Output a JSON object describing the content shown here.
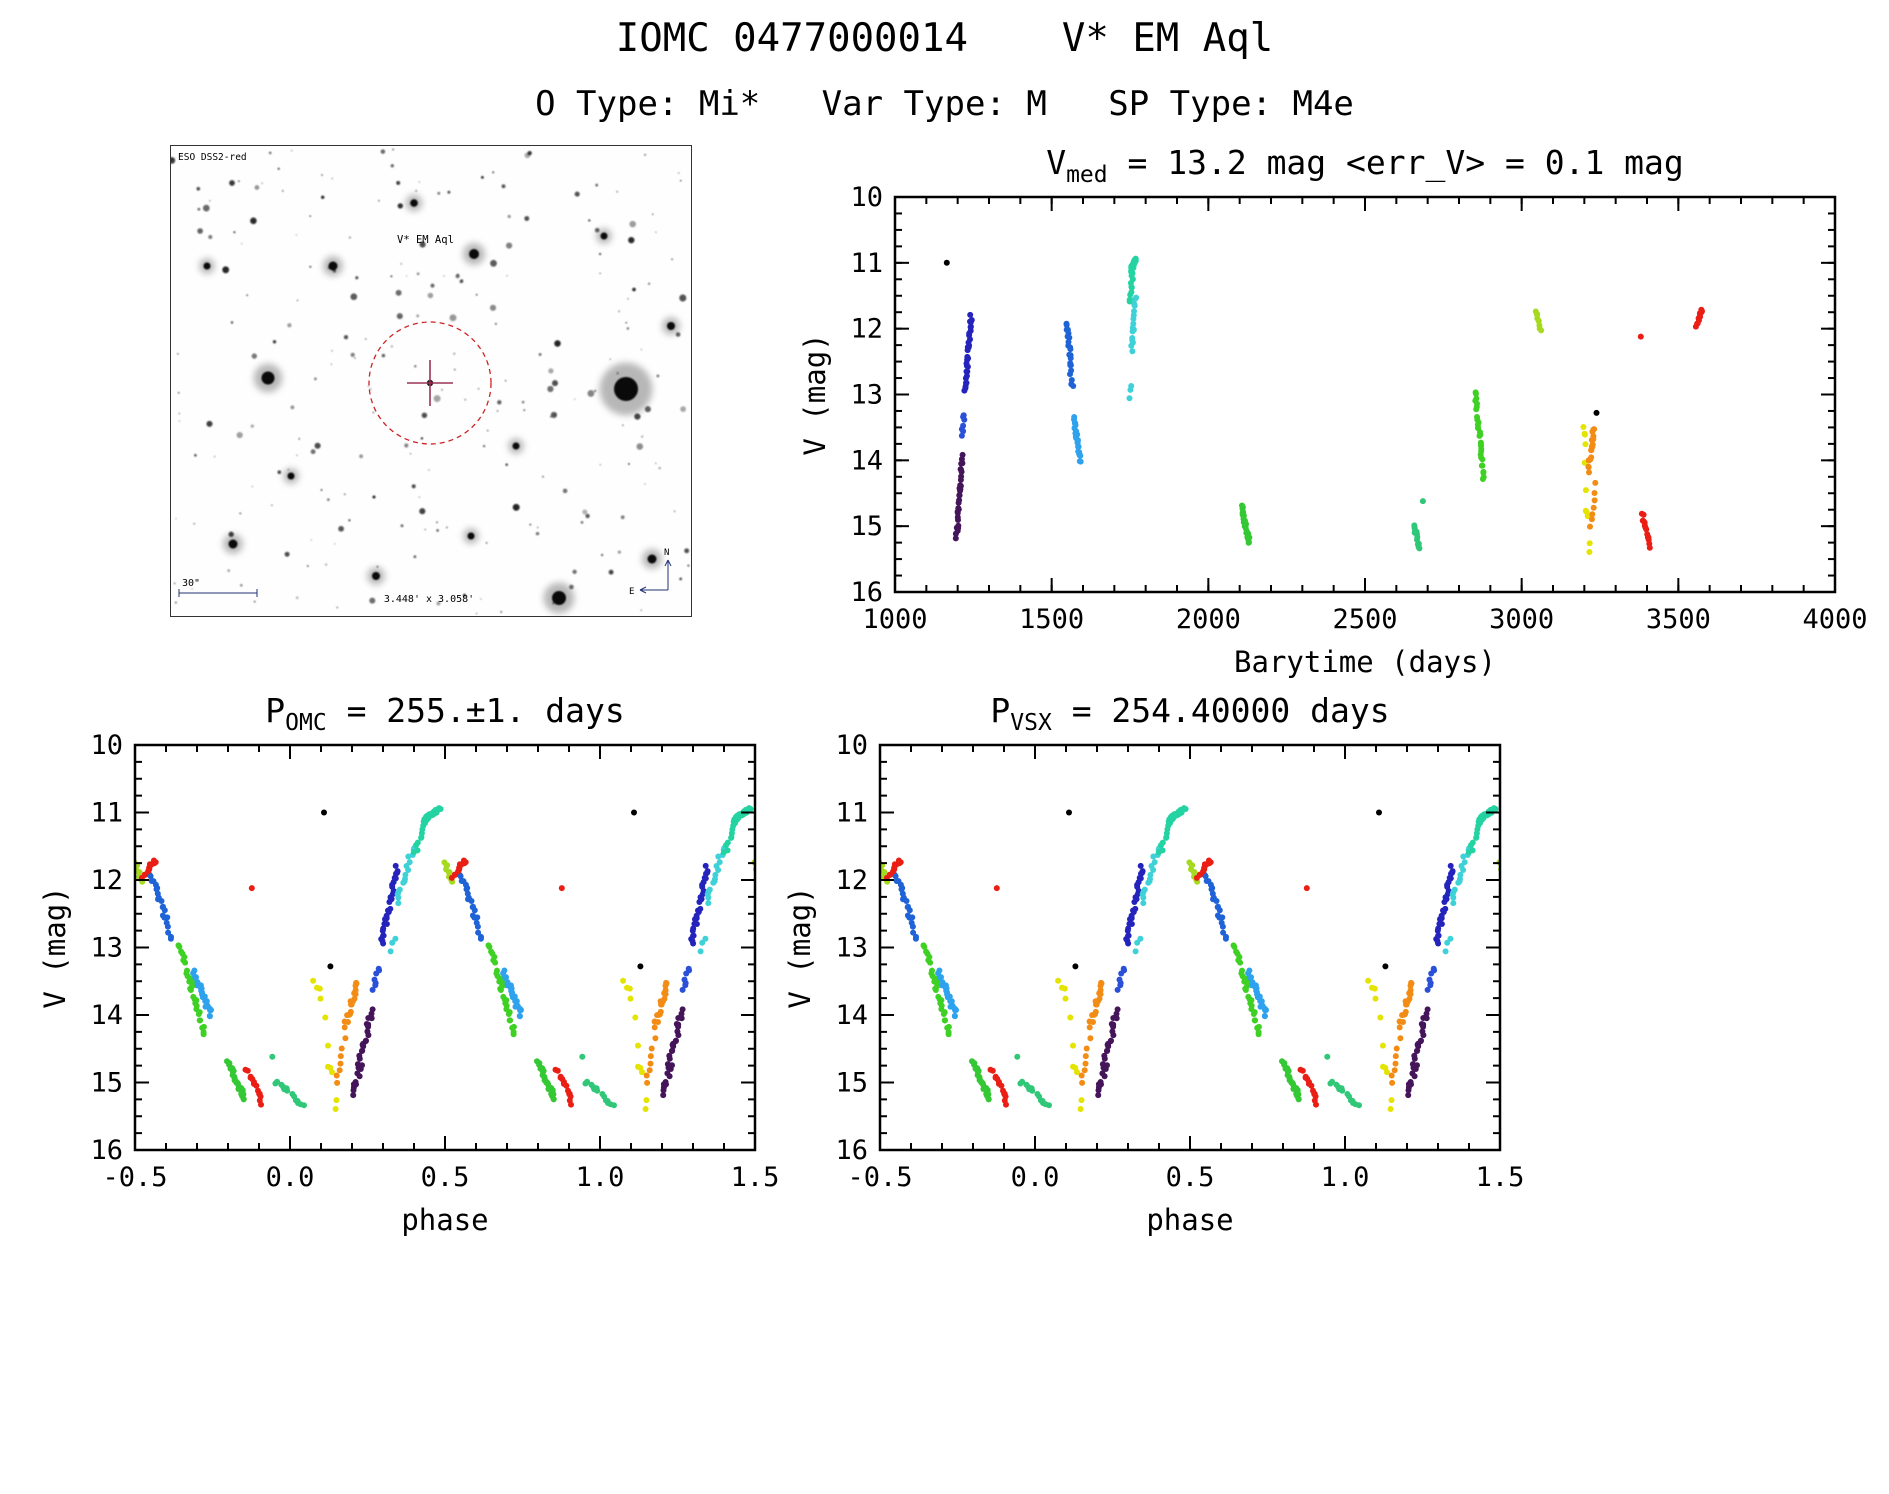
{
  "header": {
    "title": "IOMC 0477000014    V* EM Aql",
    "subtitle": "O Type: Mi*   Var Type: M   SP Type: M4e"
  },
  "finder": {
    "survey_label": "ESO DSS2-red",
    "target_label": "V* EM Aql",
    "scale_label": "30\"",
    "fov_label": "3.448' x 3.058'",
    "north_label": "N",
    "east_label": "E"
  },
  "chart_data": {
    "type": "scatter",
    "vmed_mag": 13.2,
    "err_v_mag": 0.1,
    "plots": [
      {
        "id": "barytime_lightcurve",
        "title_pre": "V",
        "title_sub": "med",
        "title_post": " = 13.2 mag <err_V> = 0.1 mag",
        "xlabel": "Barytime (days)",
        "ylabel": "V (mag)",
        "xlim": [
          1000,
          4000
        ],
        "ylim": [
          10,
          16
        ],
        "xticks": [
          1000,
          1500,
          2000,
          2500,
          3000,
          3500,
          4000
        ],
        "xtick_labels": [
          "1000",
          "1500",
          "2000",
          "2500",
          "3000",
          "3500",
          "4000"
        ],
        "xminor": 100,
        "yticks": [
          10,
          11,
          12,
          13,
          14,
          15,
          16
        ],
        "ytick_labels": [
          "10",
          "11",
          "12",
          "13",
          "14",
          "15",
          "16"
        ],
        "yminor": 0.25,
        "grid": false,
        "legend": false,
        "y_axis_note": "magnitude axis inverted, bright (10) at top"
      },
      {
        "id": "phase_fold_omc",
        "title_pre": "P",
        "title_sub": "OMC",
        "title_post": " = 255.±1. days",
        "period_days": 255,
        "period_err_days": 1,
        "xlabel": "phase",
        "ylabel": "V (mag)",
        "xlim": [
          -0.5,
          1.5
        ],
        "ylim": [
          10,
          16
        ],
        "xticks": [
          -0.5,
          0.0,
          0.5,
          1.0,
          1.5
        ],
        "xtick_labels": [
          "-0.5",
          "0.0",
          "0.5",
          "1.0",
          "1.5"
        ],
        "xminor": 0.1,
        "yticks": [
          10,
          11,
          12,
          13,
          14,
          15,
          16
        ],
        "ytick_labels": [
          "10",
          "11",
          "12",
          "13",
          "14",
          "15",
          "16"
        ],
        "yminor": 0.25,
        "grid": false,
        "legend": false
      },
      {
        "id": "phase_fold_vsx",
        "title_pre": "P",
        "title_sub": "VSX",
        "title_post": " = 254.40000 days",
        "period_days": 254.4,
        "xlabel": "phase",
        "ylabel": "V (mag)",
        "xlim": [
          -0.5,
          1.5
        ],
        "ylim": [
          10,
          16
        ],
        "xticks": [
          -0.5,
          0.0,
          0.5,
          1.0,
          1.5
        ],
        "xtick_labels": [
          "-0.5",
          "0.0",
          "0.5",
          "1.0",
          "1.5"
        ],
        "xminor": 0.1,
        "yticks": [
          10,
          11,
          12,
          13,
          14,
          15,
          16
        ],
        "ytick_labels": [
          "10",
          "11",
          "12",
          "13",
          "14",
          "15",
          "16"
        ],
        "yminor": 0.25,
        "grid": false,
        "legend": false
      }
    ],
    "clusters": [
      {
        "color": "#000000",
        "t": [
          1168,
          1168
        ],
        "v": [
          11.0,
          11.0
        ],
        "phase": [
          0.105,
          0.105
        ],
        "n": 1,
        "jv": 0
      },
      {
        "color": "#000000",
        "t": [
          3236,
          3236
        ],
        "v": [
          13.28,
          13.28
        ],
        "phase": [
          0.135,
          0.135
        ],
        "n": 1,
        "jv": 0
      },
      {
        "color": "#45155a",
        "t": [
          1196,
          1214
        ],
        "v": [
          15.15,
          13.95
        ],
        "phase": [
          0.205,
          0.262
        ],
        "n": 30,
        "jv": 0.12
      },
      {
        "color": "#2b50d8",
        "t": [
          1214,
          1221
        ],
        "v": [
          13.6,
          13.3
        ],
        "phase": [
          0.268,
          0.287
        ],
        "n": 7,
        "jv": 0.06
      },
      {
        "color": "#2424bc",
        "t": [
          1224,
          1243
        ],
        "v": [
          12.95,
          11.8
        ],
        "phase": [
          0.295,
          0.347
        ],
        "n": 30,
        "jv": 0.07
      },
      {
        "color": "#1f63d6",
        "t": [
          1548,
          1563
        ],
        "v": [
          11.9,
          12.62
        ],
        "phase": [
          0.553,
          0.603
        ],
        "n": 18,
        "jv": 0.07
      },
      {
        "color": "#1f63d6",
        "t": [
          1560,
          1567
        ],
        "v": [
          12.7,
          12.88
        ],
        "phase": [
          0.606,
          0.617
        ],
        "n": 4,
        "jv": 0.05
      },
      {
        "color": "#2fa2ee",
        "t": [
          1571,
          1591
        ],
        "v": [
          13.35,
          14.02
        ],
        "phase": [
          0.69,
          0.747
        ],
        "n": 24,
        "jv": 0.08
      },
      {
        "color": "#3ed2d8",
        "t": [
          1750,
          1756
        ],
        "v": [
          13.05,
          12.85
        ],
        "phase": [
          0.328,
          0.338
        ],
        "n": 3,
        "jv": 0.05
      },
      {
        "color": "#3ed2d8",
        "t": [
          1755,
          1767
        ],
        "v": [
          12.35,
          11.5
        ],
        "phase": [
          0.345,
          0.398
        ],
        "n": 16,
        "jv": 0.07
      },
      {
        "color": "#24d3a2",
        "t": [
          1748,
          1759
        ],
        "v": [
          11.6,
          11.15
        ],
        "phase": [
          0.405,
          0.432
        ],
        "n": 10,
        "jv": 0.05
      },
      {
        "color": "#24d3a2",
        "t": [
          1753,
          1768
        ],
        "v": [
          11.12,
          10.94
        ],
        "phase": [
          0.434,
          0.482
        ],
        "n": 28,
        "jv": 0.05
      },
      {
        "color": "#34c834",
        "t": [
          2106,
          2131
        ],
        "v": [
          14.7,
          15.25
        ],
        "phase": [
          0.8,
          0.856
        ],
        "n": 26,
        "jv": 0.08
      },
      {
        "color": "#30c878",
        "t": [
          2656,
          2676
        ],
        "v": [
          14.98,
          15.35
        ],
        "phase": [
          0.955,
          1.045
        ],
        "n": 14,
        "jv": 0.08
      },
      {
        "color": "#30c878",
        "t": [
          2684,
          2684
        ],
        "v": [
          14.62,
          14.62
        ],
        "phase": [
          0.945,
          0.945
        ],
        "n": 1,
        "jv": 0
      },
      {
        "color": "#3fd024",
        "t": [
          2852,
          2880
        ],
        "v": [
          12.98,
          14.3
        ],
        "phase": [
          0.645,
          0.725
        ],
        "n": 30,
        "jv": 0.09
      },
      {
        "color": "#a6da1e",
        "t": [
          3048,
          3061
        ],
        "v": [
          11.72,
          12.02
        ],
        "phase": [
          0.498,
          0.525
        ],
        "n": 9,
        "jv": 0.05
      },
      {
        "color": "#e4e400",
        "t": [
          3196,
          3215
        ],
        "v": [
          13.35,
          15.4
        ],
        "phase": [
          0.08,
          0.155
        ],
        "n": 11,
        "jv": 0.45
      },
      {
        "color": "#f28c14",
        "t": [
          3221,
          3235
        ],
        "v": [
          15.0,
          14.4
        ],
        "phase": [
          0.148,
          0.175
        ],
        "n": 7,
        "jv": 0.12
      },
      {
        "color": "#f28c14",
        "t": [
          3213,
          3231
        ],
        "v": [
          14.15,
          13.5
        ],
        "phase": [
          0.178,
          0.218
        ],
        "n": 18,
        "jv": 0.08
      },
      {
        "color": "#ea1e14",
        "t": [
          3386,
          3407
        ],
        "v": [
          14.8,
          15.3
        ],
        "phase": [
          0.862,
          0.91
        ],
        "n": 14,
        "jv": 0.09
      },
      {
        "color": "#ea1e14",
        "t": [
          3379,
          3379
        ],
        "v": [
          12.12,
          12.12
        ],
        "phase": [
          0.878,
          0.878
        ],
        "n": 1,
        "jv": 0
      },
      {
        "color": "#ea1e14",
        "t": [
          3558,
          3576
        ],
        "v": [
          11.95,
          11.7
        ],
        "phase": [
          0.528,
          0.565
        ],
        "n": 12,
        "jv": 0.05
      }
    ]
  }
}
